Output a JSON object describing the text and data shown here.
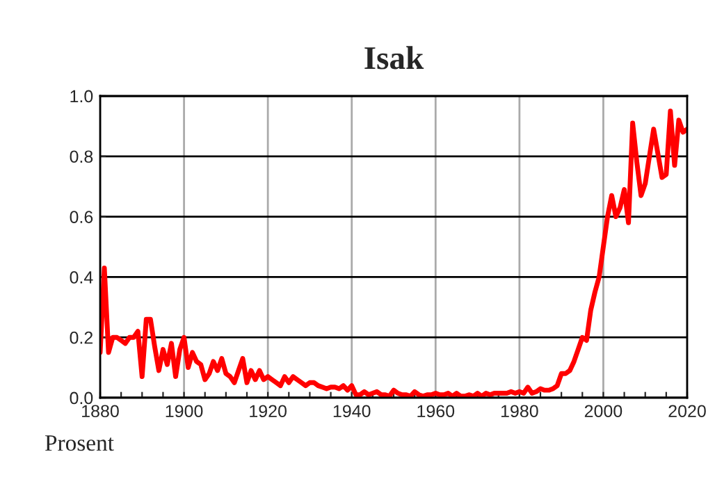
{
  "chart_data": {
    "type": "line",
    "title": "Isak",
    "annotations": [
      "Prosent"
    ],
    "x": [
      1880,
      1881,
      1882,
      1883,
      1884,
      1885,
      1886,
      1887,
      1888,
      1889,
      1890,
      1891,
      1892,
      1893,
      1894,
      1895,
      1896,
      1897,
      1898,
      1899,
      1900,
      1901,
      1902,
      1903,
      1904,
      1905,
      1906,
      1907,
      1908,
      1909,
      1910,
      1911,
      1912,
      1913,
      1914,
      1915,
      1916,
      1917,
      1918,
      1919,
      1920,
      1921,
      1922,
      1923,
      1924,
      1925,
      1926,
      1927,
      1928,
      1929,
      1930,
      1931,
      1932,
      1933,
      1934,
      1935,
      1936,
      1937,
      1938,
      1939,
      1940,
      1941,
      1942,
      1943,
      1944,
      1945,
      1946,
      1947,
      1948,
      1949,
      1950,
      1951,
      1952,
      1953,
      1954,
      1955,
      1956,
      1957,
      1958,
      1959,
      1960,
      1961,
      1962,
      1963,
      1964,
      1965,
      1966,
      1967,
      1968,
      1969,
      1970,
      1971,
      1972,
      1973,
      1974,
      1975,
      1976,
      1977,
      1978,
      1979,
      1980,
      1981,
      1982,
      1983,
      1984,
      1985,
      1986,
      1987,
      1988,
      1989,
      1990,
      1991,
      1992,
      1993,
      1994,
      1995,
      1996,
      1997,
      1998,
      1999,
      2000,
      2001,
      2002,
      2003,
      2004,
      2005,
      2006,
      2007,
      2008,
      2009,
      2010,
      2011,
      2012,
      2013,
      2014,
      2015,
      2016,
      2017,
      2018,
      2019,
      2020
    ],
    "series": [
      {
        "color": "#ff0000",
        "values": [
          0.15,
          0.43,
          0.15,
          0.2,
          0.2,
          0.19,
          0.18,
          0.2,
          0.2,
          0.22,
          0.07,
          0.26,
          0.26,
          0.17,
          0.09,
          0.16,
          0.11,
          0.18,
          0.07,
          0.16,
          0.2,
          0.1,
          0.15,
          0.12,
          0.11,
          0.06,
          0.08,
          0.12,
          0.09,
          0.13,
          0.08,
          0.07,
          0.05,
          0.09,
          0.13,
          0.05,
          0.09,
          0.06,
          0.09,
          0.06,
          0.07,
          0.06,
          0.05,
          0.04,
          0.07,
          0.05,
          0.07,
          0.06,
          0.05,
          0.04,
          0.05,
          0.05,
          0.04,
          0.035,
          0.03,
          0.035,
          0.035,
          0.03,
          0.04,
          0.025,
          0.04,
          0.01,
          0.01,
          0.02,
          0.01,
          0.015,
          0.02,
          0.01,
          0.01,
          0.005,
          0.025,
          0.015,
          0.01,
          0.01,
          0.005,
          0.02,
          0.01,
          0.005,
          0.01,
          0.01,
          0.015,
          0.01,
          0.01,
          0.015,
          0.005,
          0.015,
          0.005,
          0.005,
          0.01,
          0.005,
          0.015,
          0.005,
          0.015,
          0.01,
          0.015,
          0.015,
          0.015,
          0.015,
          0.02,
          0.015,
          0.02,
          0.015,
          0.035,
          0.015,
          0.02,
          0.03,
          0.025,
          0.025,
          0.03,
          0.04,
          0.08,
          0.08,
          0.09,
          0.12,
          0.16,
          0.2,
          0.19,
          0.29,
          0.35,
          0.4,
          0.5,
          0.6,
          0.67,
          0.6,
          0.63,
          0.69,
          0.58,
          0.91,
          0.78,
          0.67,
          0.71,
          0.8,
          0.89,
          0.81,
          0.73,
          0.74,
          0.95,
          0.77,
          0.92,
          0.88,
          0.89
        ]
      }
    ],
    "xlim": [
      1880,
      2020
    ],
    "xticks": [
      1880,
      {
        "value": 1885,
        "label": null
      },
      {
        "value": 1890,
        "label": null
      },
      {
        "value": 1895,
        "label": null
      },
      1900,
      {
        "value": 1905,
        "label": null
      },
      {
        "value": 1910,
        "label": null
      },
      {
        "value": 1915,
        "label": null
      },
      1920,
      {
        "value": 1925,
        "label": null
      },
      {
        "value": 1930,
        "label": null
      },
      {
        "value": 1935,
        "label": null
      },
      1940,
      {
        "value": 1945,
        "label": null
      },
      {
        "value": 1950,
        "label": null
      },
      {
        "value": 1955,
        "label": null
      },
      1960,
      {
        "value": 1965,
        "label": null
      },
      {
        "value": 1970,
        "label": null
      },
      {
        "value": 1975,
        "label": null
      },
      1980,
      {
        "value": 1985,
        "label": null
      },
      {
        "value": 1990,
        "label": null
      },
      {
        "value": 1995,
        "label": null
      },
      2000,
      {
        "value": 2005,
        "label": null
      },
      {
        "value": 2010,
        "label": null
      },
      {
        "value": 2015,
        "label": null
      },
      2020
    ],
    "ylim": [
      0,
      1
    ],
    "yticks": [
      {
        "value": 0,
        "label": "0.0"
      },
      {
        "value": 0.2,
        "label": "0.2"
      },
      {
        "value": 0.4,
        "label": "0.4"
      },
      {
        "value": 0.6,
        "label": "0.6"
      },
      {
        "value": 0.8,
        "label": "0.8"
      },
      {
        "value": 1,
        "label": "1.0"
      }
    ],
    "grid": true,
    "line_style": "solid",
    "marker": "none"
  }
}
